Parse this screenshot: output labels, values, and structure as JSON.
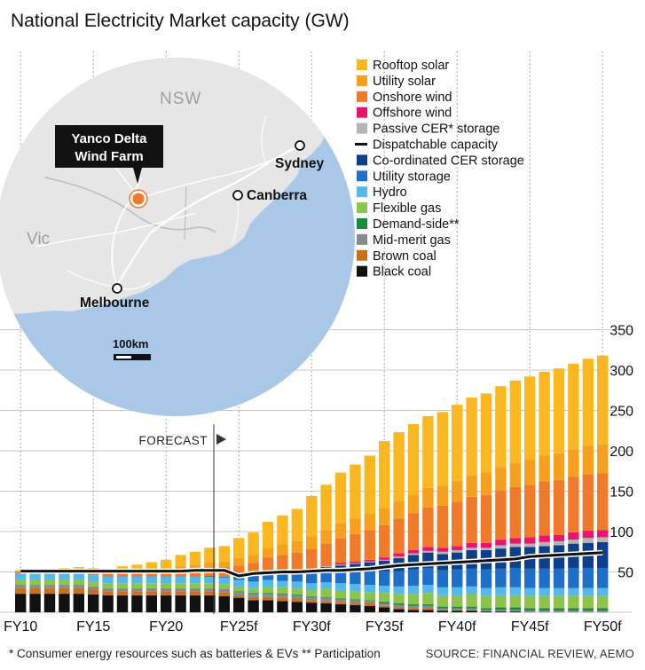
{
  "title": "National Electricity Market capacity (GW)",
  "footnote": "* Consumer energy resources such as batteries & EVs  ** Participation",
  "source": "SOURCE: FINANCIAL REVIEW, AEMO",
  "forecast_label": "FORECAST",
  "map": {
    "state_nsw": "NSW",
    "state_vic": "Vic",
    "callout": [
      "Yanco Delta",
      "Wind Farm"
    ],
    "cities": [
      "Sydney",
      "Canberra",
      "Melbourne"
    ],
    "scale_label": "100km"
  },
  "colors": {
    "map_sea": "#a9c8e8",
    "map_land": "#e6e6e6",
    "callout_bg": "#111111",
    "wind_farm_marker": "#f07a2a"
  },
  "chart_data": {
    "type": "bar",
    "stacked": true,
    "ylim": [
      0,
      350
    ],
    "yticks": [
      50,
      100,
      150,
      200,
      250,
      300,
      350
    ],
    "xtick_labels": [
      "FY10",
      "FY15",
      "FY20",
      "FY25f",
      "FY30f",
      "FY35f",
      "FY40f",
      "FY45f",
      "FY50f"
    ],
    "forecast_starts_at": "FY25f",
    "categories": [
      "FY10",
      "FY11",
      "FY12",
      "FY13",
      "FY14",
      "FY15",
      "FY16",
      "FY17",
      "FY18",
      "FY19",
      "FY20",
      "FY21",
      "FY22",
      "FY23",
      "FY24",
      "FY25f",
      "FY26f",
      "FY27f",
      "FY28f",
      "FY29f",
      "FY30f",
      "FY31f",
      "FY32f",
      "FY33f",
      "FY34f",
      "FY35f",
      "FY36f",
      "FY37f",
      "FY38f",
      "FY39f",
      "FY40f",
      "FY41f",
      "FY42f",
      "FY43f",
      "FY44f",
      "FY45f",
      "FY46f",
      "FY47f",
      "FY48f",
      "FY49f",
      "FY50f"
    ],
    "series": [
      {
        "name": "Black coal",
        "color": "#111111",
        "values": [
          23,
          23,
          23,
          23,
          23,
          22,
          21,
          21,
          21,
          21,
          21,
          21,
          21,
          21,
          20,
          18,
          15,
          15,
          14,
          13,
          12,
          11,
          10,
          9,
          8,
          6,
          4,
          3,
          3,
          2,
          2,
          2,
          1,
          1,
          1,
          0,
          0,
          0,
          0,
          0,
          0
        ]
      },
      {
        "name": "Brown coal",
        "color": "#c8701e",
        "values": [
          7,
          7,
          7,
          7,
          7,
          6,
          5,
          5,
          5,
          5,
          5,
          5,
          5,
          5,
          5,
          3,
          4,
          4,
          4,
          4,
          3,
          3,
          3,
          3,
          3,
          2,
          2,
          2,
          2,
          1,
          1,
          1,
          0,
          0,
          0,
          0,
          0,
          0,
          0,
          0,
          0
        ]
      },
      {
        "name": "Mid-merit gas",
        "color": "#8a8a8a",
        "values": [
          4,
          4,
          4,
          4,
          4,
          4,
          4,
          4,
          4,
          4,
          4,
          4,
          4,
          4,
          4,
          4,
          4,
          4,
          4,
          4,
          4,
          4,
          3,
          3,
          3,
          3,
          3,
          3,
          3,
          2,
          2,
          2,
          2,
          2,
          2,
          2,
          2,
          2,
          2,
          2,
          2
        ]
      },
      {
        "name": "Demand-side**",
        "color": "#1a8a3c",
        "values": [
          0,
          0,
          0,
          0,
          0,
          0,
          0,
          0,
          0,
          0,
          0,
          0,
          0,
          0,
          0,
          1,
          1,
          1,
          1,
          1,
          1,
          1,
          1,
          1,
          1,
          2,
          2,
          2,
          2,
          2,
          2,
          2,
          2,
          3,
          3,
          3,
          3,
          3,
          3,
          3,
          3
        ]
      },
      {
        "name": "Flexible gas",
        "color": "#8cc34a",
        "values": [
          6,
          6,
          6,
          6,
          6,
          6,
          6,
          6,
          6,
          6,
          6,
          6,
          6,
          6,
          6,
          6,
          6,
          8,
          8,
          8,
          8,
          10,
          10,
          10,
          10,
          11,
          12,
          13,
          14,
          14,
          14,
          15,
          15,
          15,
          15,
          15,
          15,
          15,
          15,
          15,
          15
        ]
      },
      {
        "name": "Hydro",
        "color": "#55b8ea",
        "values": [
          8,
          8,
          8,
          8,
          8,
          8,
          8,
          8,
          8,
          8,
          8,
          8,
          8,
          8,
          8,
          8,
          8,
          8,
          8,
          8,
          8,
          8,
          9,
          9,
          9,
          9,
          9,
          10,
          10,
          10,
          10,
          10,
          10,
          10,
          10,
          10,
          10,
          10,
          10,
          10,
          10
        ]
      },
      {
        "name": "Utility storage",
        "color": "#1e6fc8",
        "values": [
          0,
          0,
          0,
          0,
          0,
          0,
          0,
          0,
          0,
          0,
          0,
          0,
          0,
          1,
          1,
          4,
          7,
          9,
          10,
          11,
          13,
          14,
          15,
          16,
          17,
          18,
          19,
          20,
          21,
          21,
          22,
          22,
          23,
          23,
          24,
          24,
          24,
          24,
          25,
          25,
          25
        ]
      },
      {
        "name": "Co-ordinated CER storage",
        "color": "#0d3f8a",
        "values": [
          0,
          0,
          0,
          0,
          0,
          0,
          0,
          0,
          0,
          0,
          0,
          0,
          0,
          0,
          0,
          0,
          0,
          1,
          1,
          2,
          3,
          5,
          7,
          9,
          11,
          13,
          16,
          18,
          19,
          20,
          21,
          23,
          24,
          25,
          26,
          27,
          28,
          29,
          30,
          31,
          32
        ]
      },
      {
        "name": "Passive CER* storage",
        "color": "#b4b4b4",
        "values": [
          0,
          0,
          0,
          0,
          0,
          0,
          0,
          0,
          0,
          0,
          0,
          0,
          0,
          0,
          0,
          0,
          0,
          0,
          1,
          1,
          1,
          1,
          1,
          1,
          1,
          1,
          2,
          2,
          2,
          3,
          3,
          3,
          3,
          4,
          4,
          4,
          5,
          5,
          5,
          6,
          6
        ]
      },
      {
        "name": "Offshore wind",
        "color": "#e8146e",
        "values": [
          0,
          0,
          0,
          0,
          0,
          0,
          0,
          0,
          0,
          0,
          0,
          0,
          0,
          0,
          0,
          0,
          0,
          0,
          0,
          0,
          0,
          0,
          2,
          2,
          2,
          3,
          4,
          4,
          5,
          5,
          5,
          6,
          6,
          7,
          7,
          8,
          8,
          8,
          9,
          9,
          9
        ]
      },
      {
        "name": "Onshore wind",
        "color": "#f07a2a",
        "values": [
          2,
          3,
          3,
          3,
          4,
          4,
          4,
          5,
          6,
          7,
          8,
          9,
          10,
          11,
          12,
          14,
          16,
          18,
          20,
          22,
          25,
          28,
          31,
          34,
          37,
          40,
          43,
          46,
          49,
          52,
          55,
          57,
          59,
          61,
          63,
          65,
          67,
          68,
          69,
          70,
          70
        ]
      },
      {
        "name": "Utility solar",
        "color": "#f7a01e",
        "values": [
          0,
          0,
          0,
          0,
          0,
          0,
          0,
          0,
          0,
          1,
          2,
          4,
          5,
          6,
          7,
          9,
          10,
          12,
          13,
          14,
          16,
          17,
          18,
          19,
          20,
          21,
          22,
          23,
          24,
          25,
          26,
          27,
          28,
          29,
          30,
          31,
          32,
          33,
          34,
          35,
          36
        ]
      },
      {
        "name": "Rooftop solar",
        "color": "#fbb720",
        "values": [
          2,
          2,
          3,
          4,
          4,
          5,
          6,
          8,
          9,
          10,
          11,
          14,
          16,
          18,
          19,
          25,
          28,
          32,
          36,
          40,
          50,
          56,
          63,
          67,
          72,
          83,
          85,
          87,
          89,
          91,
          94,
          96,
          98,
          100,
          102,
          103,
          104,
          105,
          106,
          108,
          110
        ]
      }
    ],
    "line": {
      "name": "Dispatchable capacity",
      "color": "#111111",
      "values": [
        51,
        51,
        51,
        51,
        51,
        51,
        51,
        51,
        51,
        51,
        51,
        51,
        52,
        52,
        52,
        45,
        48,
        49,
        50,
        50,
        51,
        52,
        52,
        53,
        54,
        56,
        58,
        59,
        60,
        61,
        62,
        63,
        64,
        65,
        66,
        69,
        70,
        71,
        72,
        73,
        74
      ]
    },
    "legend_order": [
      "Rooftop solar",
      "Utility solar",
      "Onshore wind",
      "Offshore wind",
      "Passive CER* storage",
      "Dispatchable capacity",
      "Co-ordinated CER storage",
      "Utility storage",
      "Hydro",
      "Flexible gas",
      "Demand-side**",
      "Mid-merit gas",
      "Brown coal",
      "Black coal"
    ]
  }
}
